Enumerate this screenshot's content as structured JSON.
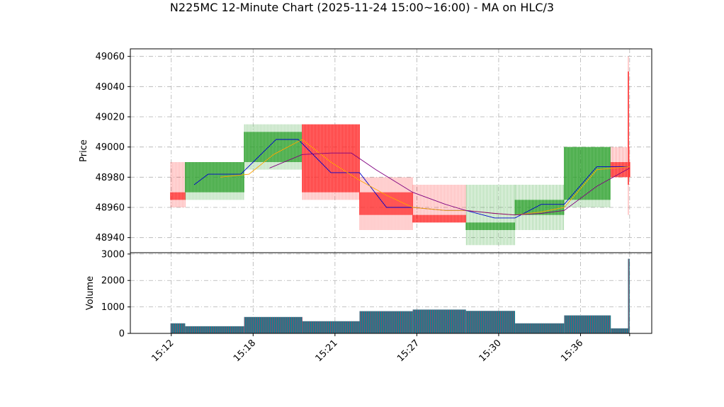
{
  "chart_data": {
    "type": "candlestick-volume",
    "title": "N225MC 12-Minute Chart (2025-11-24 15:00~16:00) - MA on HLC/3",
    "price_panel": {
      "ylabel": "Price",
      "ylim": [
        48930,
        49065
      ],
      "yticks": [
        48940,
        48960,
        48980,
        49000,
        49020,
        49040,
        49060
      ],
      "grid": true
    },
    "volume_panel": {
      "ylabel": "Volume",
      "ylim": [
        0,
        3050
      ],
      "yticks": [
        0,
        1000,
        2000,
        3000
      ],
      "grid": true
    },
    "x": {
      "xlim": [
        15.5,
        21.87
      ],
      "ticks": [
        1,
        2,
        3,
        4,
        5,
        6,
        7
      ],
      "ticklabels": [
        "15:12",
        "15:18",
        "15:21",
        "15:27",
        "15:30",
        "15:36",
        ""
      ],
      "tick_positions": [
        16.0,
        17.0,
        18.0,
        19.0,
        20.0,
        21.0,
        21.6
      ]
    },
    "candles": [
      {
        "x0": 15.99,
        "x1": 16.17,
        "open": 48970,
        "high": 48990,
        "low": 48960,
        "close": 48965,
        "color": "red"
      },
      {
        "x0": 16.17,
        "x1": 16.89,
        "open": 48970,
        "high": 48990,
        "low": 48965,
        "close": 48990,
        "color": "green"
      },
      {
        "x0": 16.89,
        "x1": 17.6,
        "open": 48990,
        "high": 49015,
        "low": 48985,
        "close": 49010,
        "color": "green"
      },
      {
        "x0": 17.6,
        "x1": 18.3,
        "open": 49015,
        "high": 49015,
        "low": 48965,
        "close": 48970,
        "color": "red"
      },
      {
        "x0": 18.3,
        "x1": 18.95,
        "open": 48970,
        "high": 48980,
        "low": 48945,
        "close": 48955,
        "color": "red"
      },
      {
        "x0": 18.95,
        "x1": 19.6,
        "open": 48955,
        "high": 48975,
        "low": 48950,
        "close": 48950,
        "color": "red"
      },
      {
        "x0": 19.6,
        "x1": 20.2,
        "open": 48945,
        "high": 48975,
        "low": 48935,
        "close": 48950,
        "color": "green"
      },
      {
        "x0": 20.2,
        "x1": 20.8,
        "open": 48955,
        "high": 48975,
        "low": 48945,
        "close": 48965,
        "color": "green"
      },
      {
        "x0": 20.8,
        "x1": 21.37,
        "open": 48965,
        "high": 49000,
        "low": 48960,
        "close": 49000,
        "color": "green"
      },
      {
        "x0": 21.37,
        "x1": 21.6,
        "open": 48990,
        "high": 49000,
        "low": 48980,
        "close": 48980,
        "color": "red"
      },
      {
        "x0": 21.58,
        "x1": 21.6,
        "open": 49050,
        "high": 49060,
        "low": 48955,
        "close": 48975,
        "color": "red"
      }
    ],
    "volume": [
      {
        "x0": 15.99,
        "x1": 16.17,
        "value": 380
      },
      {
        "x0": 16.17,
        "x1": 16.89,
        "value": 270
      },
      {
        "x0": 16.89,
        "x1": 17.6,
        "value": 620
      },
      {
        "x0": 17.6,
        "x1": 18.3,
        "value": 460
      },
      {
        "x0": 18.3,
        "x1": 18.95,
        "value": 840
      },
      {
        "x0": 18.95,
        "x1": 19.6,
        "value": 900
      },
      {
        "x0": 19.6,
        "x1": 20.2,
        "value": 850
      },
      {
        "x0": 20.2,
        "x1": 20.8,
        "value": 380
      },
      {
        "x0": 20.8,
        "x1": 21.37,
        "value": 680
      },
      {
        "x0": 21.37,
        "x1": 21.58,
        "value": 190
      },
      {
        "x0": 21.58,
        "x1": 21.6,
        "value": 2820
      }
    ],
    "series": [
      {
        "color": "#0000cc",
        "points": [
          [
            16.28,
            48975
          ],
          [
            16.45,
            48982
          ],
          [
            16.85,
            48982
          ],
          [
            17.0,
            48990
          ],
          [
            17.28,
            49005
          ],
          [
            17.55,
            49005
          ],
          [
            17.95,
            48983
          ],
          [
            18.3,
            48983
          ],
          [
            18.63,
            48960
          ],
          [
            18.95,
            48960
          ],
          [
            19.35,
            48958
          ],
          [
            19.6,
            48958
          ],
          [
            19.95,
            48953
          ],
          [
            20.2,
            48953
          ],
          [
            20.52,
            48962
          ],
          [
            20.8,
            48962
          ],
          [
            21.2,
            48987
          ],
          [
            21.6,
            48987
          ]
        ]
      },
      {
        "color": "#ffa500",
        "points": [
          [
            16.6,
            48980
          ],
          [
            16.95,
            48982
          ],
          [
            17.25,
            48995
          ],
          [
            17.6,
            49005
          ],
          [
            17.95,
            48990
          ],
          [
            18.3,
            48978
          ],
          [
            18.63,
            48968
          ],
          [
            18.95,
            48960
          ],
          [
            19.35,
            48958
          ],
          [
            19.6,
            48958
          ],
          [
            19.95,
            48956
          ],
          [
            20.2,
            48955
          ],
          [
            20.52,
            48957
          ],
          [
            20.8,
            48960
          ],
          [
            21.2,
            48985
          ],
          [
            21.6,
            48987
          ]
        ]
      },
      {
        "color": "#800080",
        "points": [
          [
            17.2,
            48986
          ],
          [
            17.6,
            48995
          ],
          [
            17.95,
            48996
          ],
          [
            18.2,
            48996
          ],
          [
            18.5,
            48985
          ],
          [
            18.95,
            48970
          ],
          [
            19.35,
            48962
          ],
          [
            19.6,
            48958
          ],
          [
            19.95,
            48956
          ],
          [
            20.2,
            48955
          ],
          [
            20.52,
            48956
          ],
          [
            20.8,
            48958
          ],
          [
            21.2,
            48974
          ],
          [
            21.6,
            48986
          ]
        ]
      }
    ],
    "colors": {
      "up": "#2ca02c",
      "down": "#ff2a2a",
      "volume_fill": "#1f7a8c",
      "volume_stripe": "#cc3355",
      "grid": "#b0b0b0"
    }
  }
}
